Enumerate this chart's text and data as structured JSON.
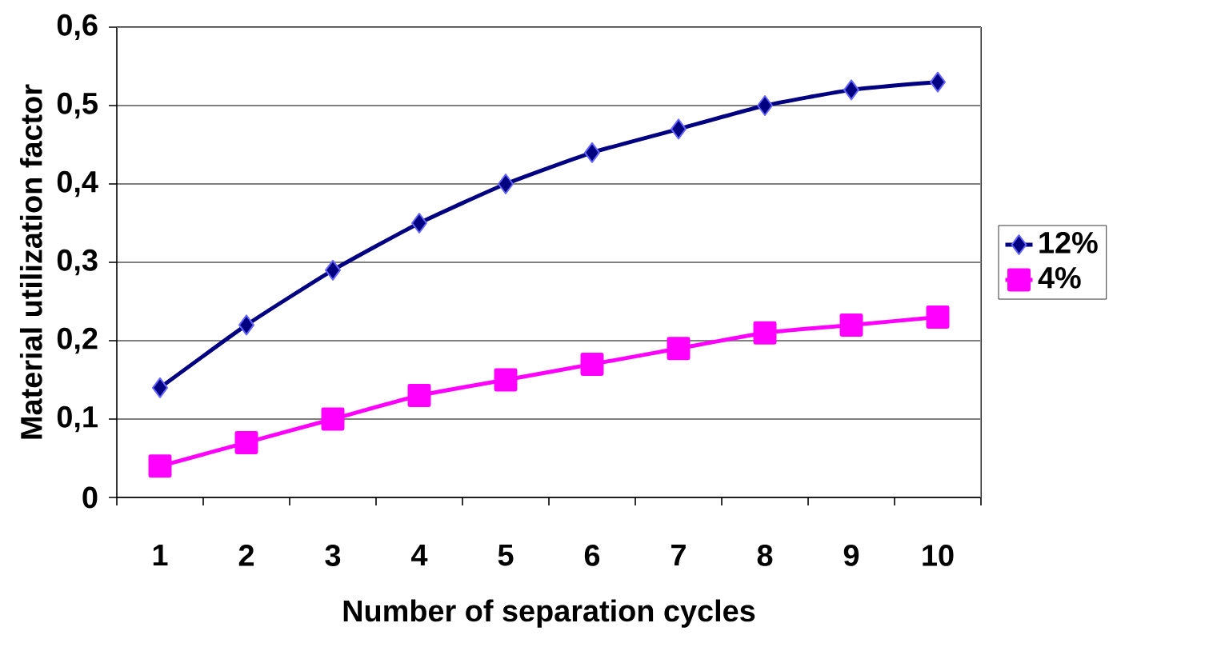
{
  "chart_data": {
    "type": "line",
    "xlabel": "Number of separation cycles",
    "ylabel": "Material utilization factor",
    "categories": [
      "1",
      "2",
      "3",
      "4",
      "5",
      "6",
      "7",
      "8",
      "9",
      "10"
    ],
    "series": [
      {
        "name": "12%",
        "color": "#000080",
        "marker": "diamond",
        "values": [
          0.14,
          0.22,
          0.29,
          0.35,
          0.4,
          0.44,
          0.47,
          0.5,
          0.52,
          0.53
        ]
      },
      {
        "name": "4%",
        "color": "#ff00ff",
        "marker": "square",
        "values": [
          0.04,
          0.07,
          0.1,
          0.13,
          0.15,
          0.17,
          0.19,
          0.21,
          0.22,
          0.23
        ]
      }
    ],
    "ylim": [
      0,
      0.6
    ],
    "yticks": [
      {
        "value": 0,
        "label": "0"
      },
      {
        "value": 0.1,
        "label": "0,1"
      },
      {
        "value": 0.2,
        "label": "0,2"
      },
      {
        "value": 0.3,
        "label": "0,3"
      },
      {
        "value": 0.4,
        "label": "0,4"
      },
      {
        "value": 0.5,
        "label": "0,5"
      },
      {
        "value": 0.6,
        "label": "0,6"
      }
    ],
    "grid": "y",
    "legend": "right",
    "line_style": "solid"
  }
}
